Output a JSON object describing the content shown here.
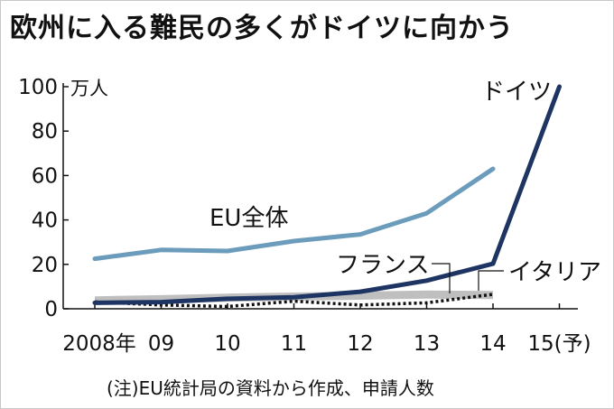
{
  "title": "欧州に入る難民の多くがドイツに向かう",
  "unit_label": "万人",
  "footnote": "(注)EU統計局の資料から作成、申請人数",
  "chart_data": {
    "type": "line",
    "x_tick_labels": [
      "2008年",
      "09",
      "10",
      "11",
      "12",
      "13",
      "14",
      "15(予)"
    ],
    "y_tick_labels": [
      "0",
      "20",
      "40",
      "60",
      "80",
      "100"
    ],
    "ylim": [
      0,
      100
    ],
    "series": [
      {
        "name": "EU全体",
        "color": "#6b9cbc",
        "style": "solid",
        "x": [
          0,
          1,
          2,
          3,
          4,
          5,
          6
        ],
        "values": [
          22.5,
          26.5,
          26,
          30.5,
          33.5,
          43,
          63
        ]
      },
      {
        "name": "ドイツ",
        "color": "#1e3463",
        "style": "solid",
        "x": [
          0,
          1,
          2,
          3,
          4,
          5,
          6,
          7
        ],
        "values": [
          2.7,
          3,
          4.5,
          5.2,
          7.7,
          12.7,
          20.3,
          100
        ]
      },
      {
        "name": "フランス",
        "color": "#a9a9a9",
        "style": "band",
        "x": [
          0,
          1,
          2,
          3,
          4,
          5,
          6
        ],
        "values": [
          4,
          4.5,
          5.2,
          5.7,
          6.1,
          6.6,
          6.4
        ]
      },
      {
        "name": "イタリア",
        "color": "#111111",
        "style": "dotted",
        "x": [
          0,
          1,
          2,
          3,
          4,
          5,
          6
        ],
        "values": [
          3.1,
          1.7,
          1,
          3.4,
          1.7,
          2.7,
          6.5
        ]
      }
    ],
    "grid": false
  }
}
